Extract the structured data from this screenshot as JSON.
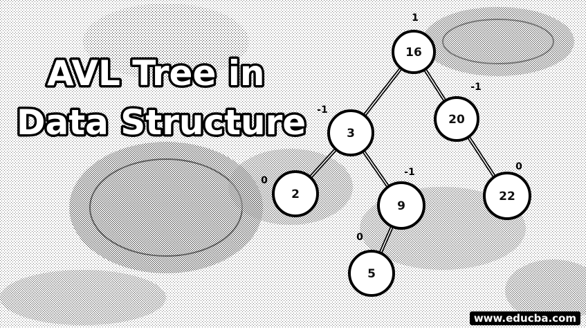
{
  "title": {
    "line1": "AVL Tree in",
    "line2": "Data Structure"
  },
  "tree": {
    "nodes": [
      {
        "id": "n16",
        "value": "16",
        "balance": "1"
      },
      {
        "id": "n3",
        "value": "3",
        "balance": "-1"
      },
      {
        "id": "n20",
        "value": "20",
        "balance": "-1"
      },
      {
        "id": "n2",
        "value": "2",
        "balance": "0"
      },
      {
        "id": "n9",
        "value": "9",
        "balance": "-1"
      },
      {
        "id": "n22",
        "value": "22",
        "balance": "0"
      },
      {
        "id": "n5",
        "value": "5",
        "balance": "0"
      }
    ],
    "edges": [
      {
        "from": "n16",
        "to": "n3"
      },
      {
        "from": "n16",
        "to": "n20"
      },
      {
        "from": "n3",
        "to": "n2"
      },
      {
        "from": "n3",
        "to": "n9"
      },
      {
        "from": "n20",
        "to": "n22"
      },
      {
        "from": "n9",
        "to": "n5"
      }
    ]
  },
  "watermark": "www.educba.com",
  "colors": {
    "ink": "#000000",
    "paper": "#ffffff"
  }
}
